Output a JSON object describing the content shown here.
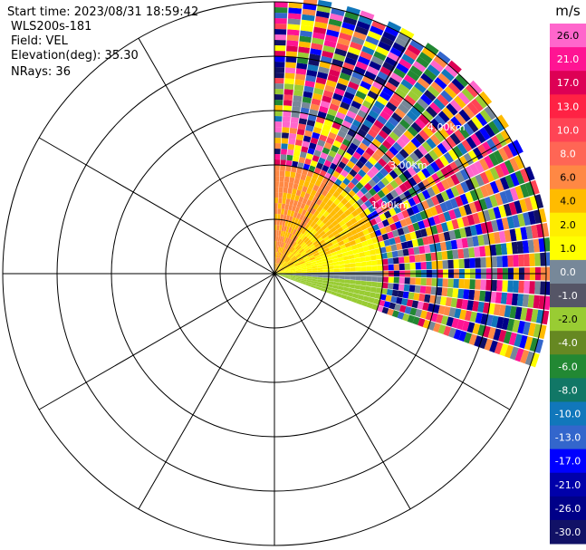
{
  "info": {
    "start_time": "Start time: 2023/08/31 18:59:42",
    "instrument": "WLS200s-181",
    "field": "Field: VEL",
    "elevation": "Elevation(deg): 35.30",
    "nrays": "NRays: 36"
  },
  "plot": {
    "visible_range_labels": [
      "1.00km",
      "3.00km",
      "4.00km"
    ],
    "sector_start_deg": 0,
    "sector_end_deg": 110,
    "ray_count": 36
  },
  "colorbar": {
    "unit": "m/s",
    "ticks": [
      "26.0",
      "21.0",
      "17.0",
      "13.0",
      "10.0",
      "8.0",
      "6.0",
      "4.0",
      "2.0",
      "1.0",
      "0.0",
      "-1.0",
      "-2.0",
      "-4.0",
      "-6.0",
      "-8.0",
      "-10.0",
      "-13.0",
      "-17.0",
      "-21.0",
      "-26.0",
      "-30.0"
    ],
    "colors": [
      "#ff66cc",
      "#ff1493",
      "#dd0055",
      "#ff2244",
      "#ff4455",
      "#ff6655",
      "#ff8844",
      "#ffbb00",
      "#ffee00",
      "#ffff00",
      "#778899",
      "#555566",
      "#99cc33",
      "#668822",
      "#228833",
      "#117766",
      "#1177bb",
      "#3366cc",
      "#0000ff",
      "#0000aa",
      "#000088",
      "#111166"
    ]
  }
}
